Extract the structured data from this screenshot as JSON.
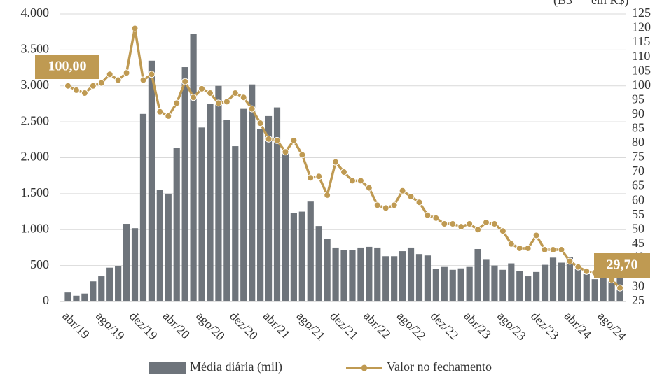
{
  "chart_data": {
    "type": "bar-line",
    "subtitle": "(B3 — em R$)",
    "categories": [
      "abr/19",
      null,
      null,
      null,
      "ago/19",
      null,
      null,
      null,
      "dez/19",
      null,
      null,
      null,
      "abr/20",
      null,
      null,
      null,
      "ago/20",
      null,
      null,
      null,
      "dez/20",
      null,
      null,
      null,
      "abr/21",
      null,
      null,
      null,
      "ago/21",
      null,
      null,
      null,
      "dez/21",
      null,
      null,
      null,
      "abr/22",
      null,
      null,
      null,
      "ago/22",
      null,
      null,
      null,
      "dez/22",
      null,
      null,
      null,
      "abr/23",
      null,
      null,
      null,
      "ago/23",
      null,
      null,
      null,
      "dez/23",
      null,
      null,
      null,
      "abr/24",
      null,
      null,
      null,
      "ago/24",
      null,
      null
    ],
    "series": [
      {
        "name": "Média diária (mil)",
        "color": "#6e747b",
        "type": "bar",
        "values": [
          125,
          80,
          110,
          280,
          350,
          470,
          490,
          1080,
          1020,
          2610,
          3350,
          1550,
          1500,
          2140,
          3260,
          3720,
          2420,
          2750,
          3000,
          2530,
          2160,
          2680,
          3020,
          2400,
          2580,
          2700,
          2100,
          1230,
          1250,
          1390,
          1050,
          870,
          750,
          720,
          720,
          750,
          760,
          750,
          630,
          630,
          700,
          750,
          660,
          640,
          450,
          480,
          440,
          460,
          480,
          730,
          580,
          500,
          440,
          530,
          420,
          350,
          410,
          510,
          610,
          540,
          620,
          450,
          380,
          310,
          350,
          380,
          340
        ]
      },
      {
        "name": "Valor no fechamento",
        "color": "#bf9a52",
        "type": "line",
        "axis": "y2",
        "values": [
          100,
          98.5,
          97.5,
          100,
          101,
          104,
          102,
          104.5,
          120,
          102,
          104,
          91,
          89.5,
          94,
          101.5,
          96,
          99,
          97.5,
          94,
          94.5,
          97.5,
          96,
          92,
          87,
          81.5,
          81,
          77,
          81,
          76,
          68,
          68.5,
          62,
          73.5,
          70,
          67,
          67,
          64.5,
          58.5,
          57.5,
          58.5,
          63.5,
          61.5,
          59.5,
          55,
          54,
          52,
          52,
          51,
          52,
          50,
          52.5,
          52,
          49.5,
          45,
          43.5,
          43.5,
          48,
          43,
          43,
          43,
          39,
          37,
          35.5,
          35,
          36,
          32.5,
          29.7
        ],
        "value_labels": [
          "100,00",
          null,
          null,
          null,
          null,
          null,
          null,
          null,
          null,
          null,
          null,
          null,
          null,
          null,
          null,
          null,
          null,
          null,
          null,
          null,
          null,
          null,
          null,
          null,
          null,
          null,
          null,
          null,
          null,
          null,
          null,
          null,
          null,
          null,
          null,
          null,
          null,
          null,
          null,
          null,
          null,
          null,
          null,
          null,
          null,
          null,
          null,
          null,
          null,
          null,
          null,
          null,
          null,
          null,
          null,
          null,
          null,
          null,
          null,
          null,
          null,
          null,
          null,
          null,
          null,
          null,
          "29,70"
        ]
      }
    ],
    "ylim": [
      0,
      4000
    ],
    "yticks": [
      0,
      500,
      {
        "value": 1000,
        "label": "1.000"
      },
      {
        "value": 1500,
        "label": "1.500"
      },
      {
        "value": 2000,
        "label": "2.000"
      },
      {
        "value": 2500,
        "label": "2.500"
      },
      {
        "value": 3000,
        "label": "3.000"
      },
      {
        "value": 3500,
        "label": "3.500"
      },
      {
        "value": 4000,
        "label": "4.000"
      }
    ],
    "y2lim": [
      25,
      125
    ],
    "y2ticks": [
      25,
      30,
      35,
      40,
      45,
      50,
      55,
      60,
      65,
      70,
      75,
      80,
      85,
      90,
      95,
      100,
      105,
      110,
      115,
      120,
      125
    ],
    "grid": true,
    "legend": "bottom"
  }
}
